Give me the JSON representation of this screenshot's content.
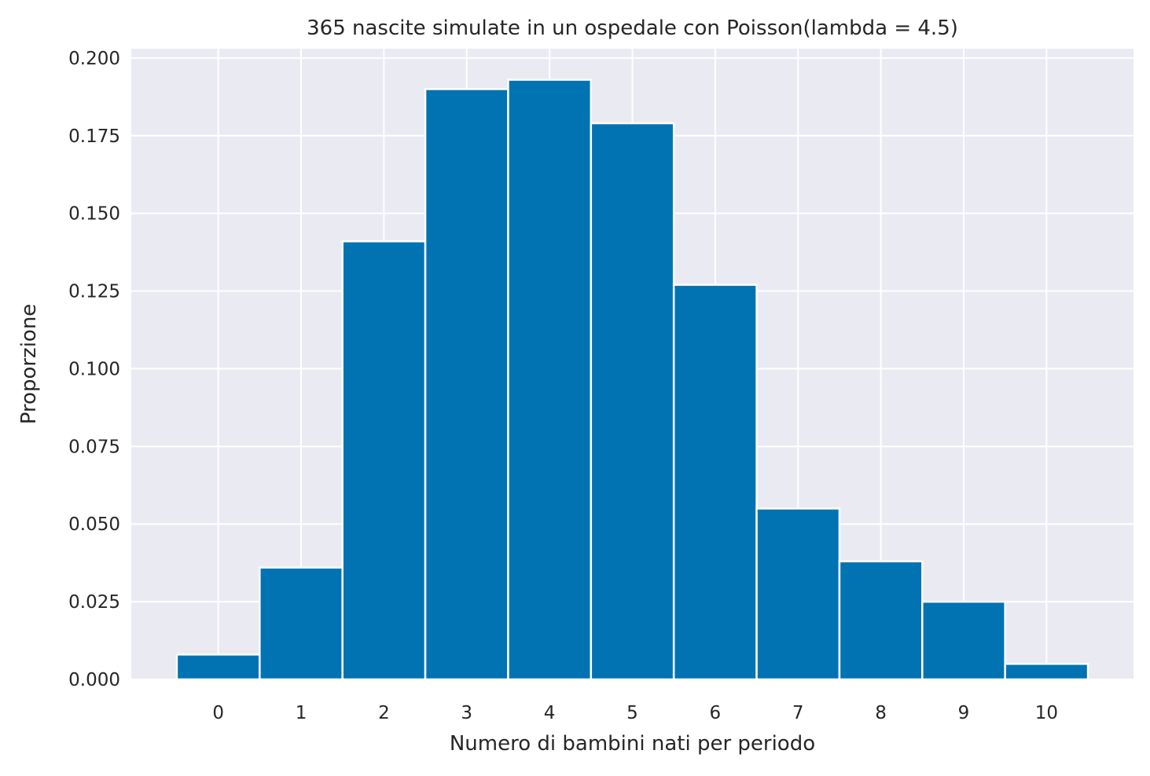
{
  "chart_data": {
    "type": "bar",
    "title": "365 nascite simulate in un ospedale con Poisson(lambda = 4.5)",
    "xlabel": "Numero di bambini nati per periodo",
    "ylabel": "Proporzione",
    "categories": [
      "0",
      "1",
      "2",
      "3",
      "4",
      "5",
      "6",
      "7",
      "8",
      "9",
      "10"
    ],
    "x": [
      0,
      1,
      2,
      3,
      4,
      5,
      6,
      7,
      8,
      9,
      10
    ],
    "values": [
      0.008,
      0.036,
      0.141,
      0.19,
      0.193,
      0.179,
      0.127,
      0.055,
      0.038,
      0.025,
      0.005
    ],
    "xlim": [
      -1.05,
      11.05
    ],
    "ylim": [
      0,
      0.203
    ],
    "yticks": [
      0.0,
      0.025,
      0.05,
      0.075,
      0.1,
      0.125,
      0.15,
      0.175,
      0.2
    ],
    "ytick_labels": [
      "0.000",
      "0.025",
      "0.050",
      "0.075",
      "0.100",
      "0.125",
      "0.150",
      "0.175",
      "0.200"
    ],
    "grid": true,
    "legend": "none",
    "colors": {
      "bar": "#0173b2",
      "background": "#eaeaf2",
      "grid": "#ffffff",
      "edge": "#ffffff",
      "text": "#262626"
    }
  }
}
